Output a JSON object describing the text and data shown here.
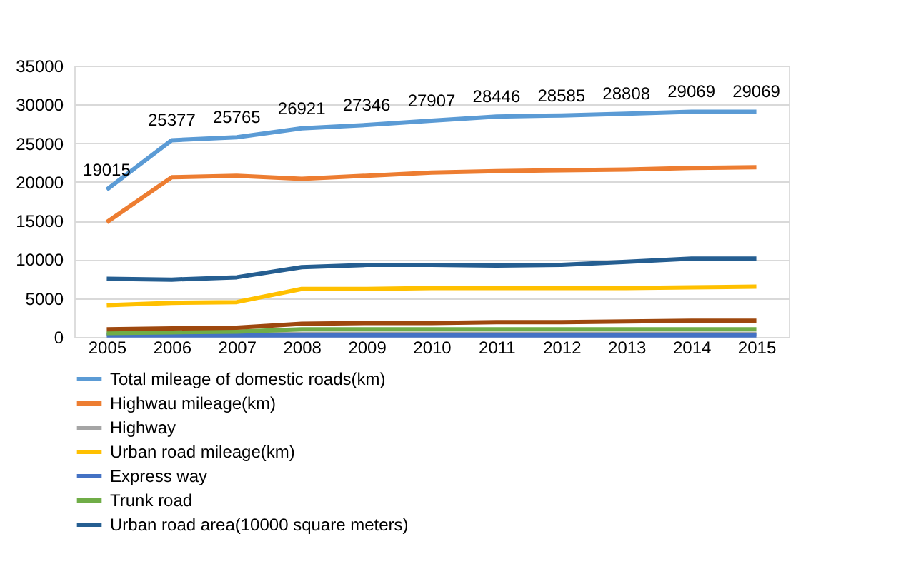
{
  "chart_data": {
    "type": "line",
    "categories": [
      "2005",
      "2006",
      "2007",
      "2008",
      "2009",
      "2010",
      "2011",
      "2012",
      "2013",
      "2014",
      "2015"
    ],
    "ylim": [
      0,
      35000
    ],
    "yticks": [
      0,
      5000,
      10000,
      15000,
      20000,
      25000,
      30000,
      35000
    ],
    "grid": "y",
    "legend": "bottom",
    "line_style": "solid",
    "marker": "none",
    "series": [
      {
        "name": "Total mileage of domestic roads(km)",
        "color": "#5b9bd5",
        "values": [
          19015,
          25377,
          25765,
          26921,
          27346,
          27907,
          28446,
          28585,
          28808,
          29069,
          29069
        ],
        "value_labels": [
          "19015",
          "25377",
          "25765",
          "26921",
          "27346",
          "27907",
          "28446",
          "28585",
          "28808",
          "29069",
          "29069"
        ]
      },
      {
        "name": "Highwau mileage(km)",
        "color": "#ed7d31",
        "values": [
          14800,
          20600,
          20800,
          20400,
          20800,
          21200,
          21400,
          21500,
          21600,
          21800,
          21900
        ]
      },
      {
        "name": "Highway",
        "color": "#a5a5a5",
        "values": [
          400,
          400,
          400,
          400,
          400,
          400,
          400,
          400,
          400,
          400,
          400
        ]
      },
      {
        "name": "Urban road mileage(km)",
        "color": "#ffc000",
        "values": [
          4100,
          4400,
          4500,
          6200,
          6200,
          6300,
          6300,
          6300,
          6300,
          6400,
          6500
        ]
      },
      {
        "name": "Express way",
        "color": "#4472c4",
        "values": [
          200,
          200,
          200,
          200,
          200,
          200,
          200,
          200,
          200,
          200,
          200
        ]
      },
      {
        "name": "Trunk road",
        "color": "#70ad47",
        "values": [
          500,
          600,
          700,
          1000,
          1000,
          1000,
          1000,
          1000,
          1000,
          1000,
          1000
        ]
      },
      {
        "name": "Urban road area(10000 square meters)",
        "color": "#255e91",
        "values": [
          7500,
          7400,
          7700,
          9000,
          9300,
          9300,
          9200,
          9300,
          9700,
          10100,
          10100
        ]
      },
      {
        "color": "#9e480e",
        "values": [
          1000,
          1100,
          1200,
          1700,
          1800,
          1800,
          1900,
          1900,
          2000,
          2100,
          2100
        ]
      }
    ]
  }
}
